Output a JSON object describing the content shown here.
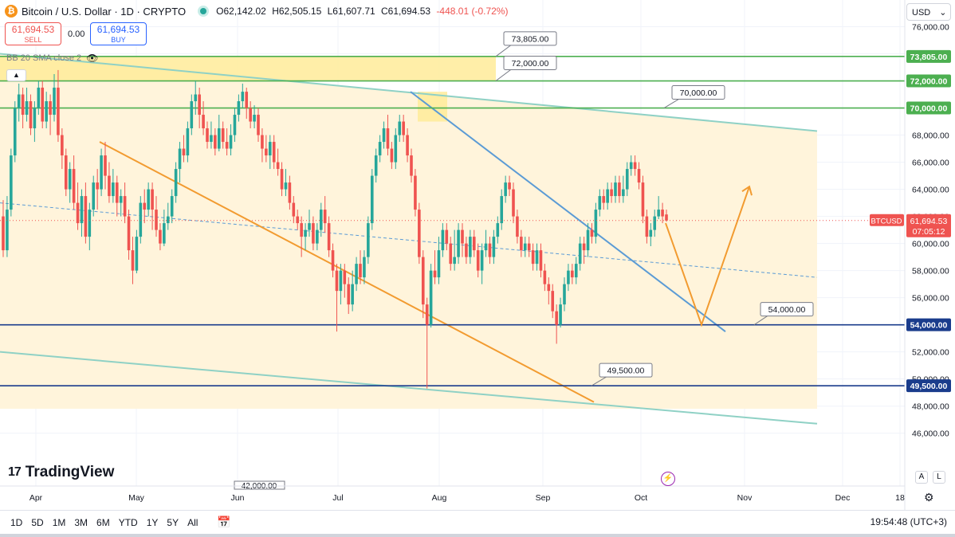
{
  "header": {
    "symbol": "Bitcoin / U.S. Dollar · 1D · CRYPTO",
    "coin_glyph": "₿",
    "ohlc": [
      "O62,142.02",
      "H62,505.15",
      "L61,607.71",
      "C61,694.53",
      "-448.01 (-0.72%)"
    ],
    "sell_price": "61,694.53",
    "sell_label": "SELL",
    "spread": "0.00",
    "buy_price": "61,694.53",
    "buy_label": "BUY",
    "indicator": "BB 20 SMA close 2",
    "currency": "USD",
    "currency_chevron": "⌄"
  },
  "logo": "TradingView",
  "logo_mark": "17",
  "scale_buttons": [
    "A",
    "L"
  ],
  "timeframes": [
    "1D",
    "5D",
    "1M",
    "3M",
    "6M",
    "YTD",
    "1Y",
    "5Y",
    "All"
  ],
  "clock": "19:54:48 (UTC+3)",
  "icons": [
    "bitcoin-icon",
    "eye-icon",
    "chevron-up-icon",
    "calendar-range-icon",
    "gear-icon",
    "lightning-icon"
  ],
  "colors": {
    "up": "#26a69a",
    "down": "#ef5350",
    "green_level": "#4caf50",
    "blue_level": "#1a3c8c",
    "orange": "#f29b30",
    "teal_channel": "#8fd1c5",
    "blue_trend": "#5b9bd5",
    "zone_fill": "#fff4db",
    "yellow_zone": "#ffeb99"
  },
  "chart_data": {
    "type": "candlestick",
    "ylim": [
      45000,
      78000
    ],
    "y_ticks": [
      "46,000.00",
      "48,000.00",
      "50,000.00",
      "52,000.00",
      "54,000.00",
      "56,000.00",
      "58,000.00",
      "60,000.00",
      "62,000.00",
      "64,000.00",
      "66,000.00",
      "68,000.00",
      "70,000.00",
      "72,000.00",
      "74,000.00",
      "76,000.00"
    ],
    "x_labels": [
      "Apr",
      "May",
      "Jun",
      "Jul",
      "Aug",
      "Sep",
      "Oct",
      "Nov",
      "Dec",
      "18"
    ],
    "current_price": {
      "symbol": "BTCUSD",
      "value": "61,694.53",
      "countdown": "07:05:12",
      "y": 61694.53
    },
    "levels": [
      {
        "value": 73805,
        "label": "73,805.00",
        "axis_label": "73,805.00",
        "color": "#4caf50"
      },
      {
        "value": 72000,
        "label": "72,000.00",
        "axis_label": "72,000.00",
        "color": "#4caf50"
      },
      {
        "value": 70000,
        "label": "70,000.00",
        "axis_label": "70,000.00",
        "color": "#4caf50"
      },
      {
        "value": 54000,
        "label": "54,000.00",
        "axis_label": "54,000.00",
        "color": "#1a3c8c"
      },
      {
        "value": 49500,
        "label": "49,500.00",
        "axis_label": "49,500.00",
        "color": "#1a3c8c"
      }
    ],
    "partial_label": "42,000.00",
    "candles": [
      [
        62000,
        59500,
        63200,
        59000
      ],
      [
        59500,
        62500,
        63500,
        59000
      ],
      [
        62500,
        66500,
        67000,
        62000
      ],
      [
        66500,
        70000,
        70500,
        66000
      ],
      [
        70000,
        71000,
        71800,
        69000
      ],
      [
        71000,
        69500,
        71500,
        68500
      ],
      [
        69500,
        70500,
        71500,
        69000
      ],
      [
        70500,
        68500,
        71000,
        68000
      ],
      [
        68500,
        70000,
        70500,
        67500
      ],
      [
        70000,
        71500,
        72000,
        69500
      ],
      [
        71500,
        69000,
        72000,
        68500
      ],
      [
        69000,
        70500,
        71200,
        68500
      ],
      [
        70500,
        69500,
        71000,
        68000
      ],
      [
        69500,
        71500,
        72500,
        69000
      ],
      [
        71500,
        68000,
        72800,
        67500
      ],
      [
        68000,
        66500,
        68500,
        65500
      ],
      [
        66500,
        64000,
        67000,
        63500
      ],
      [
        64000,
        65500,
        66000,
        63000
      ],
      [
        65500,
        63000,
        66500,
        62500
      ],
      [
        63000,
        61500,
        64500,
        61000
      ],
      [
        61500,
        63500,
        64000,
        60500
      ],
      [
        63500,
        60500,
        64500,
        60000
      ],
      [
        60500,
        62500,
        63000,
        59500
      ],
      [
        62500,
        64500,
        65000,
        62000
      ],
      [
        64500,
        64000,
        65500,
        62500
      ],
      [
        64000,
        66500,
        67000,
        63500
      ],
      [
        66500,
        65000,
        67500,
        64000
      ],
      [
        65000,
        63500,
        66000,
        63000
      ],
      [
        63500,
        64500,
        65500,
        63000
      ],
      [
        64500,
        63000,
        65000,
        62000
      ],
      [
        63000,
        63500,
        64000,
        62000
      ],
      [
        63500,
        62000,
        64500,
        61500
      ],
      [
        62000,
        59500,
        62500,
        58800
      ],
      [
        59500,
        58000,
        60500,
        57000
      ],
      [
        58000,
        60500,
        61000,
        57800
      ],
      [
        60500,
        63000,
        63500,
        60000
      ],
      [
        63000,
        62500,
        64000,
        61500
      ],
      [
        62500,
        64000,
        64500,
        62000
      ],
      [
        64000,
        62500,
        64500,
        61000
      ],
      [
        62500,
        61000,
        63500,
        60500
      ],
      [
        61000,
        60000,
        61500,
        59500
      ],
      [
        60000,
        61500,
        62500,
        59800
      ],
      [
        61500,
        62000,
        63000,
        61000
      ],
      [
        62000,
        63500,
        64000,
        61500
      ],
      [
        63500,
        65500,
        66000,
        63000
      ],
      [
        65500,
        67000,
        67500,
        64500
      ],
      [
        67000,
        66500,
        68000,
        66000
      ],
      [
        66500,
        68500,
        69000,
        66000
      ],
      [
        68500,
        70500,
        71000,
        68000
      ],
      [
        70500,
        71000,
        72000,
        69500
      ],
      [
        71000,
        69500,
        71500,
        68500
      ],
      [
        69500,
        68500,
        70500,
        68000
      ],
      [
        68500,
        67500,
        69000,
        67000
      ],
      [
        67500,
        68000,
        69000,
        67000
      ],
      [
        68000,
        67000,
        68500,
        66500
      ],
      [
        67000,
        68500,
        69500,
        66800
      ],
      [
        68500,
        67500,
        69000,
        67000
      ],
      [
        67500,
        67000,
        68500,
        66500
      ],
      [
        67000,
        68000,
        68800,
        66500
      ],
      [
        68000,
        69500,
        70000,
        67500
      ],
      [
        69500,
        70500,
        71000,
        69000
      ],
      [
        70500,
        71200,
        71800,
        70000
      ],
      [
        71200,
        70000,
        71500,
        69200
      ],
      [
        70000,
        69000,
        70500,
        68500
      ],
      [
        69000,
        69500,
        70200,
        68500
      ],
      [
        69500,
        68000,
        70000,
        67500
      ],
      [
        68000,
        67000,
        68500,
        66000
      ],
      [
        67000,
        66500,
        68000,
        66000
      ],
      [
        66500,
        67500,
        68000,
        65500
      ],
      [
        67500,
        66000,
        68000,
        65500
      ],
      [
        66000,
        65500,
        67000,
        65000
      ],
      [
        65500,
        64000,
        66000,
        63500
      ],
      [
        64000,
        64500,
        65500,
        63500
      ],
      [
        64500,
        63000,
        65000,
        62500
      ],
      [
        63000,
        62000,
        63500,
        61500
      ],
      [
        62000,
        61500,
        62500,
        61000
      ],
      [
        61500,
        60500,
        62000,
        59000
      ],
      [
        60500,
        61000,
        61500,
        59500
      ],
      [
        61000,
        61500,
        62500,
        60500
      ],
      [
        61500,
        60000,
        62000,
        59500
      ],
      [
        60000,
        61000,
        61500,
        59500
      ],
      [
        61000,
        62500,
        63000,
        60500
      ],
      [
        62500,
        61500,
        63500,
        60800
      ],
      [
        61500,
        59500,
        62000,
        59000
      ],
      [
        59500,
        58000,
        60000,
        57500
      ],
      [
        58000,
        56500,
        58500,
        53500
      ],
      [
        56500,
        58000,
        58500,
        55500
      ],
      [
        58000,
        57000,
        58500,
        56000
      ],
      [
        57000,
        55500,
        57500,
        54800
      ],
      [
        55500,
        57000,
        58000,
        55000
      ],
      [
        57000,
        58500,
        59000,
        56500
      ],
      [
        58500,
        57500,
        59500,
        57000
      ],
      [
        57500,
        59000,
        59500,
        57000
      ],
      [
        59000,
        61500,
        62000,
        58500
      ],
      [
        61500,
        65000,
        65500,
        61000
      ],
      [
        65000,
        66500,
        67000,
        64500
      ],
      [
        66500,
        67500,
        68000,
        66000
      ],
      [
        67500,
        68500,
        69000,
        67000
      ],
      [
        68500,
        67000,
        69500,
        66500
      ],
      [
        67000,
        66000,
        67500,
        65500
      ],
      [
        66000,
        68000,
        68500,
        65500
      ],
      [
        68000,
        69000,
        69500,
        67500
      ],
      [
        69000,
        68000,
        69500,
        67500
      ],
      [
        68000,
        66500,
        68500,
        66000
      ],
      [
        66500,
        65000,
        67000,
        64500
      ],
      [
        65000,
        62500,
        65500,
        62000
      ],
      [
        62500,
        59000,
        63000,
        58500
      ],
      [
        59000,
        55500,
        59500,
        54500
      ],
      [
        55500,
        54000,
        56000,
        49300
      ],
      [
        54000,
        58000,
        58500,
        53800
      ],
      [
        58000,
        57500,
        59500,
        57000
      ],
      [
        57500,
        59500,
        60500,
        57000
      ],
      [
        59500,
        61000,
        61500,
        59000
      ],
      [
        61000,
        60000,
        61500,
        59500
      ],
      [
        60000,
        58500,
        60500,
        58000
      ],
      [
        58500,
        59000,
        61000,
        58000
      ],
      [
        59000,
        61000,
        61500,
        58500
      ],
      [
        61000,
        60000,
        61500,
        59000
      ],
      [
        60000,
        59000,
        60500,
        58500
      ],
      [
        59000,
        60500,
        61000,
        58500
      ],
      [
        60500,
        59500,
        61000,
        59000
      ],
      [
        59500,
        58000,
        60000,
        57500
      ],
      [
        58000,
        59500,
        60000,
        57000
      ],
      [
        59500,
        60000,
        61000,
        59000
      ],
      [
        60000,
        59000,
        60500,
        58500
      ],
      [
        59000,
        60500,
        61000,
        58500
      ],
      [
        60500,
        61500,
        62000,
        60000
      ],
      [
        61500,
        63500,
        64000,
        61000
      ],
      [
        63500,
        64500,
        65000,
        63000
      ],
      [
        64500,
        64000,
        65000,
        63500
      ],
      [
        64000,
        62000,
        64500,
        61500
      ],
      [
        62000,
        60500,
        62500,
        60000
      ],
      [
        60500,
        59500,
        61000,
        59000
      ],
      [
        59500,
        60000,
        60500,
        59000
      ],
      [
        60000,
        59500,
        60500,
        59000
      ],
      [
        59500,
        58500,
        60000,
        58000
      ],
      [
        58500,
        59500,
        60000,
        58000
      ],
      [
        59500,
        58000,
        60000,
        57500
      ],
      [
        58000,
        57000,
        58500,
        56500
      ],
      [
        57000,
        56500,
        57500,
        55500
      ],
      [
        56500,
        55000,
        57000,
        54500
      ],
      [
        55000,
        54000,
        55500,
        52600
      ],
      [
        54000,
        55500,
        56000,
        53800
      ],
      [
        55500,
        57000,
        57500,
        55000
      ],
      [
        57000,
        58000,
        58500,
        56500
      ],
      [
        58000,
        57500,
        58500,
        57000
      ],
      [
        57500,
        58500,
        59000,
        57000
      ],
      [
        58500,
        60000,
        60500,
        58000
      ],
      [
        60000,
        59500,
        60500,
        58500
      ],
      [
        59500,
        61000,
        61500,
        59000
      ],
      [
        61000,
        60500,
        61500,
        60000
      ],
      [
        60500,
        62500,
        63000,
        60000
      ],
      [
        62500,
        63500,
        64000,
        62000
      ],
      [
        63500,
        63000,
        64000,
        62500
      ],
      [
        63000,
        64000,
        64500,
        62500
      ],
      [
        64000,
        63500,
        64500,
        63000
      ],
      [
        63500,
        64500,
        65000,
        63000
      ],
      [
        64500,
        63500,
        65000,
        63000
      ],
      [
        63500,
        64000,
        65000,
        63000
      ],
      [
        64000,
        65500,
        66000,
        63500
      ],
      [
        65500,
        66000,
        66500,
        65000
      ],
      [
        66000,
        65500,
        66500,
        65000
      ],
      [
        65500,
        64500,
        66000,
        64000
      ],
      [
        64500,
        62000,
        65000,
        61500
      ],
      [
        62000,
        60500,
        62500,
        60000
      ],
      [
        60500,
        61000,
        61500,
        59800
      ],
      [
        61000,
        62000,
        62500,
        60500
      ],
      [
        62000,
        62500,
        63500,
        61800
      ],
      [
        62500,
        62000,
        63000,
        61500
      ],
      [
        62142,
        61694,
        62505,
        61607
      ]
    ],
    "bollinger_middle": [
      [
        0,
        63000
      ],
      [
        1025,
        57500
      ]
    ],
    "channel_upper": [
      [
        0,
        74000
      ],
      [
        1025,
        68300
      ]
    ],
    "channel_lower": [
      [
        0,
        52000
      ],
      [
        1025,
        46700
      ]
    ],
    "blue_trend": [
      [
        515,
        71200
      ],
      [
        910,
        53500
      ]
    ],
    "orange_trend": [
      [
        125,
        67500
      ],
      [
        745,
        48300
      ]
    ],
    "forecast": [
      [
        835,
        61500
      ],
      [
        880,
        54000
      ],
      [
        940,
        64200
      ]
    ],
    "yellow_zones": [
      {
        "from": [
          0,
          73805
        ],
        "to": [
          622,
          72000
        ]
      },
      {
        "from": [
          524,
          71200
        ],
        "to": [
          561,
          69000
        ]
      }
    ]
  }
}
